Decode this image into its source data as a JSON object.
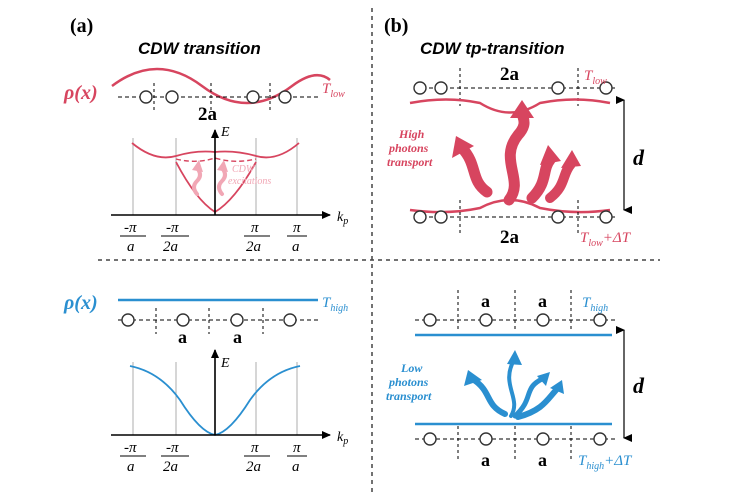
{
  "colors": {
    "red": "#d7455f",
    "red_light": "#f1a7b5",
    "blue": "#2a8fd0",
    "black": "#000000"
  },
  "panel_a": {
    "letter": "(a)",
    "title": "CDW  transition",
    "top": {
      "rho_label": "ρ(x)",
      "temp_main": "T",
      "temp_sub": "low",
      "lattice_label": "2a",
      "excitation_label_1": "CDW",
      "excitation_label_2": "excitations"
    },
    "bottom": {
      "rho_label": "ρ(x)",
      "temp_main": "T",
      "temp_sub": "high",
      "lattice_label_1": "a",
      "lattice_label_2": "a"
    },
    "axis": {
      "energy_label": "E",
      "k_main": "k",
      "k_sub": "p",
      "ticks": [
        {
          "num": "-π",
          "den": "a"
        },
        {
          "num": "-π",
          "den": "2a"
        },
        {
          "num": "π",
          "den": "2a"
        },
        {
          "num": "π",
          "den": "a"
        }
      ]
    }
  },
  "panel_b": {
    "letter": "(b)",
    "title": "CDW  tp-transition",
    "top": {
      "lattice_label_top": "2a",
      "lattice_label_bottom": "2a",
      "temp_top_main": "T",
      "temp_top_sub": "low",
      "temp_bottom_main": "T",
      "temp_bottom_sub": "low",
      "temp_bottom_suffix": "+ΔT",
      "gap_label": "d",
      "transport_lines": [
        "High",
        "photons",
        "transport"
      ]
    },
    "bottom": {
      "lattice_label_top_1": "a",
      "lattice_label_top_2": "a",
      "lattice_label_bottom_1": "a",
      "lattice_label_bottom_2": "a",
      "temp_top_main": "T",
      "temp_top_sub": "high",
      "temp_bottom_main": "T",
      "temp_bottom_sub": "high",
      "temp_bottom_suffix": "+ΔT",
      "gap_label": "d",
      "transport_lines": [
        "Low",
        "photons",
        "transport"
      ]
    }
  }
}
